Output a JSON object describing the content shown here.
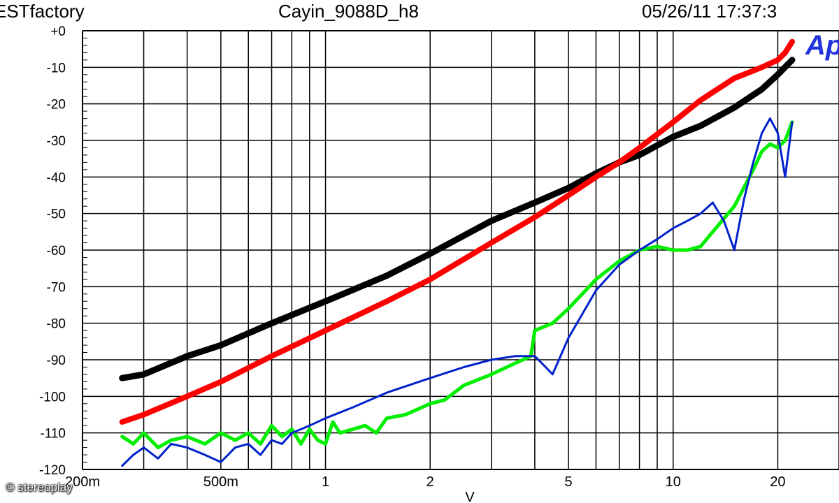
{
  "header": {
    "left": "ESTfactory",
    "center": "Cayin_9088D_h8",
    "right": "05/26/11 17:37:3"
  },
  "logo_text": "Ap",
  "watermark": "© stereoplay",
  "chart_data": {
    "type": "line",
    "title": "Cayin_9088D_h8",
    "xlabel": "V",
    "ylabel": "",
    "x_scale": "log",
    "xlim": [
      0.2,
      30
    ],
    "ylim": [
      -120,
      0
    ],
    "grid": true,
    "x_tick_labels": [
      {
        "value": 0.2,
        "label": "200m"
      },
      {
        "value": 0.5,
        "label": "500m"
      },
      {
        "value": 1,
        "label": "1"
      },
      {
        "value": 2,
        "label": "2"
      },
      {
        "value": 5,
        "label": "5"
      },
      {
        "value": 10,
        "label": "10"
      },
      {
        "value": 20,
        "label": "20"
      }
    ],
    "y_tick_labels": [
      "+0",
      "-10",
      "-20",
      "-30",
      "-40",
      "-50",
      "-60",
      "-70",
      "-80",
      "-90",
      "-100",
      "-110",
      "-120"
    ],
    "series": [
      {
        "color": "#000000",
        "width": 9,
        "x": [
          0.26,
          0.3,
          0.4,
          0.5,
          0.7,
          1.0,
          1.5,
          2.0,
          3.0,
          4.0,
          5.0,
          6.0,
          7.0,
          8.0,
          10,
          12,
          15,
          18,
          20,
          22
        ],
        "y": [
          -95,
          -94,
          -89,
          -86,
          -80,
          -74,
          -67,
          -61,
          -52,
          -47,
          -43,
          -39,
          -36,
          -34,
          -29,
          -26,
          -21,
          -16,
          -12,
          -8
        ]
      },
      {
        "color": "#ff0000",
        "width": 8,
        "x": [
          0.26,
          0.3,
          0.4,
          0.5,
          0.7,
          1.0,
          1.5,
          2.0,
          3.0,
          4.0,
          5.0,
          6.0,
          7.0,
          8.0,
          10,
          12,
          15,
          18,
          20,
          21,
          22
        ],
        "y": [
          -107,
          -105,
          -100,
          -96,
          -89,
          -82,
          -74,
          -68,
          -58,
          -51,
          -45,
          -40,
          -36,
          -32,
          -25,
          -19,
          -13,
          -10,
          -8,
          -6,
          -3
        ]
      },
      {
        "color": "#00ee00",
        "width": 5,
        "x": [
          0.26,
          0.28,
          0.3,
          0.33,
          0.36,
          0.4,
          0.45,
          0.5,
          0.55,
          0.6,
          0.65,
          0.7,
          0.75,
          0.8,
          0.85,
          0.9,
          0.95,
          1.0,
          1.05,
          1.1,
          1.2,
          1.3,
          1.4,
          1.5,
          1.7,
          2.0,
          2.2,
          2.5,
          3.0,
          3.5,
          3.9,
          4.0,
          4.5,
          5.0,
          6.0,
          7.0,
          8.0,
          9.0,
          10,
          11,
          12,
          13,
          15,
          17,
          18,
          19,
          20,
          21,
          22
        ],
        "y": [
          -111,
          -113,
          -110,
          -114,
          -112,
          -111,
          -113,
          -110,
          -112,
          -110,
          -113,
          -108,
          -111,
          -109,
          -113,
          -109,
          -112,
          -113,
          -107,
          -110,
          -109,
          -108,
          -110,
          -106,
          -105,
          -102,
          -101,
          -97,
          -94,
          -91,
          -89,
          -82,
          -80,
          -76,
          -68,
          -63,
          -60,
          -59,
          -60,
          -60,
          -59,
          -55,
          -48,
          -38,
          -33,
          -31,
          -32,
          -30,
          -25
        ]
      },
      {
        "color": "#0022cc",
        "width": 3,
        "x": [
          0.26,
          0.28,
          0.3,
          0.33,
          0.36,
          0.4,
          0.45,
          0.5,
          0.55,
          0.6,
          0.65,
          0.7,
          0.75,
          0.8,
          0.9,
          1.0,
          1.2,
          1.5,
          2.0,
          2.5,
          3.0,
          3.5,
          4.0,
          4.3,
          4.5,
          5.0,
          6.0,
          7.0,
          8.0,
          9.0,
          10,
          11,
          12,
          13,
          14,
          15,
          16,
          17,
          18,
          19,
          20,
          21,
          22
        ],
        "y": [
          -119,
          -116,
          -114,
          -117,
          -113,
          -114,
          -116,
          -118,
          -114,
          -113,
          -116,
          -112,
          -113,
          -110,
          -108,
          -106,
          -103,
          -99,
          -95,
          -92,
          -90,
          -89,
          -89,
          -92,
          -94,
          -84,
          -71,
          -64,
          -60,
          -57,
          -54,
          -52,
          -50,
          -47,
          -52,
          -60,
          -46,
          -36,
          -28,
          -24,
          -28,
          -40,
          -25
        ]
      }
    ]
  }
}
